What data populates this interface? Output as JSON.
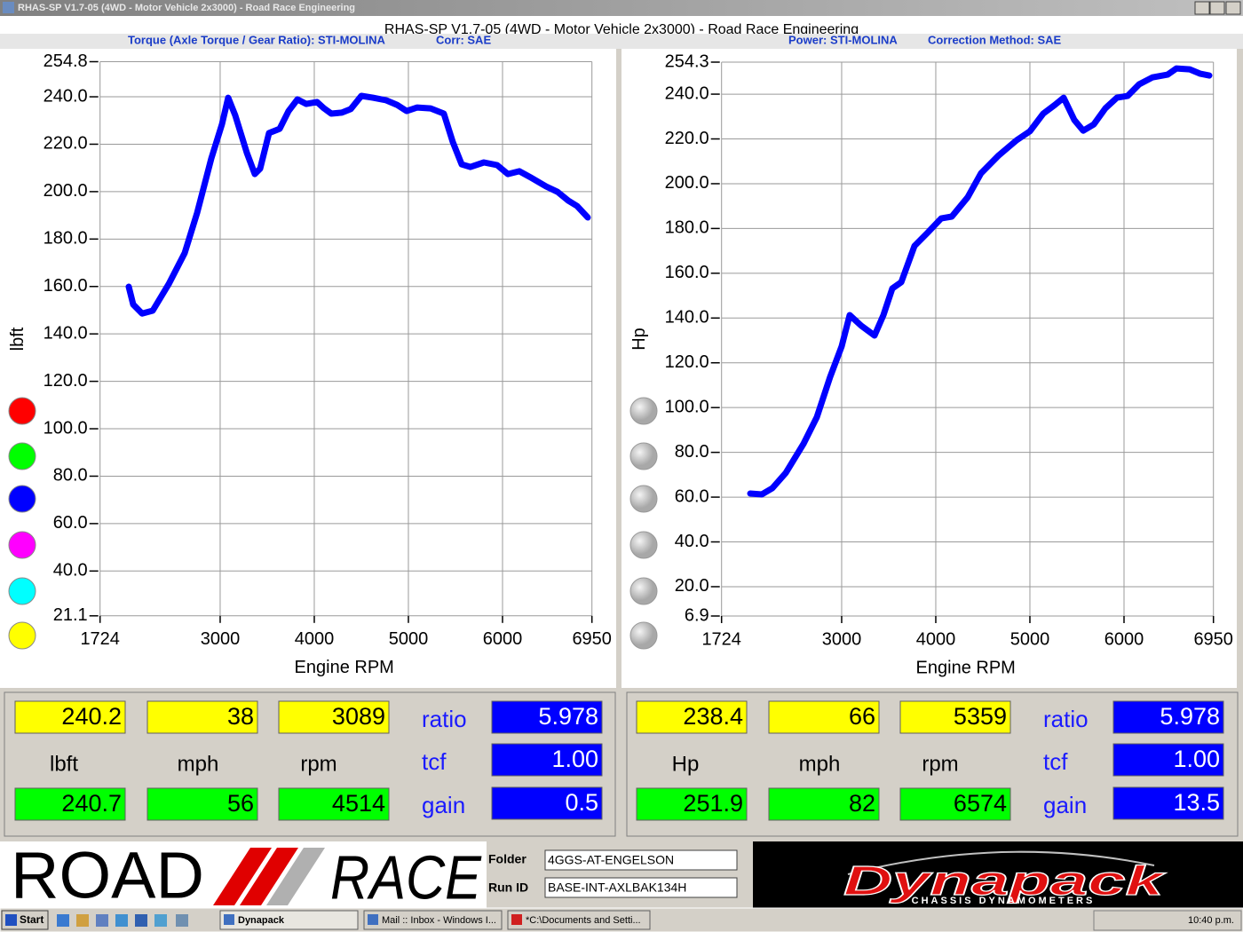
{
  "window": {
    "title": "RHAS-SP V1.7-05  (4WD - Motor Vehicle 2x3000) - Road Race Engineering"
  },
  "header": {
    "title": "RHAS-SP V1.7-05  (4WD - Motor Vehicle 2x3000) - Road Race Engineering",
    "left_info": [
      "Torque (Axle Torque / Gear Ratio): STI-MOLINA",
      "Corr: SAE"
    ],
    "right_info": [
      "Power: STI-MOLINA",
      "Correction Method: SAE"
    ]
  },
  "chart_data": [
    {
      "type": "line",
      "x_label": "Engine RPM",
      "y_label": "lbft",
      "color": "#0000ff",
      "grid": true,
      "xlim": [
        1724,
        6950
      ],
      "xticks": [
        1724,
        3000,
        4000,
        5000,
        6000,
        6950
      ],
      "ylim": [
        21.1,
        254.8
      ],
      "yticks": [
        254.8,
        {
          "value": 240,
          "label": "240.0"
        },
        {
          "value": 220,
          "label": "220.0"
        },
        {
          "value": 200,
          "label": "200.0"
        },
        {
          "value": 180,
          "label": "180.0"
        },
        {
          "value": 160,
          "label": "160.0"
        },
        {
          "value": 140,
          "label": "140.0"
        },
        {
          "value": 120,
          "label": "120.0"
        },
        {
          "value": 100,
          "label": "100.0"
        },
        {
          "value": 80,
          "label": "80.0"
        },
        {
          "value": 60,
          "label": "60.0"
        },
        {
          "value": 40,
          "label": "40.0"
        },
        21.1
      ],
      "x": [
        2029,
        2076,
        2170,
        2283,
        2453,
        2623,
        2755,
        2906,
        3019,
        3085,
        3161,
        3283,
        3368,
        3425,
        3519,
        3632,
        3727,
        3821,
        3915,
        4029,
        4104,
        4180,
        4293,
        4387,
        4500,
        4623,
        4764,
        4878,
        4981,
        5094,
        5236,
        5377,
        5472,
        5566,
        5660,
        5802,
        5943,
        6057,
        6179,
        6302,
        6462,
        6585,
        6698,
        6793,
        6906
      ],
      "values": [
        159.9,
        152.4,
        148.6,
        149.8,
        161,
        174.1,
        191,
        214,
        228.4,
        239.6,
        232.1,
        216.4,
        207.4,
        209.7,
        224.7,
        226.5,
        234,
        238.9,
        237,
        237.8,
        235.1,
        232.9,
        233.3,
        234.8,
        240.4,
        239.6,
        238.5,
        236.6,
        234,
        235.5,
        235.1,
        232.9,
        220.9,
        211.5,
        210.4,
        212.3,
        211.2,
        207.4,
        208.6,
        205.9,
        202.2,
        199.9,
        196.2,
        193.9,
        189.1
      ]
    },
    {
      "type": "line",
      "x_label": "Engine RPM",
      "y_label": "Hp",
      "color": "#0000ff",
      "grid": true,
      "xlim": [
        1724,
        6950
      ],
      "xticks": [
        1724,
        3000,
        4000,
        5000,
        6000,
        6950
      ],
      "ylim": [
        6.9,
        254.3
      ],
      "yticks": [
        254.3,
        {
          "value": 240,
          "label": "240.0"
        },
        {
          "value": 220,
          "label": "220.0"
        },
        {
          "value": 200,
          "label": "200.0"
        },
        {
          "value": 180,
          "label": "180.0"
        },
        {
          "value": 160,
          "label": "160.0"
        },
        {
          "value": 140,
          "label": "140.0"
        },
        {
          "value": 120,
          "label": "120.0"
        },
        {
          "value": 100,
          "label": "100.0"
        },
        {
          "value": 80,
          "label": "80.0"
        },
        {
          "value": 60,
          "label": "60.0"
        },
        {
          "value": 40,
          "label": "40.0"
        },
        {
          "value": 20,
          "label": "20.0"
        },
        6.9
      ],
      "x": [
        2029,
        2151,
        2264,
        2406,
        2595,
        2736,
        2877,
        3000,
        3085,
        3208,
        3349,
        3444,
        3538,
        3633,
        3774,
        3915,
        4057,
        4170,
        4340,
        4481,
        4670,
        4859,
        5000,
        5142,
        5265,
        5359,
        5472,
        5566,
        5679,
        5802,
        5925,
        6038,
        6160,
        6302,
        6462,
        6557,
        6698,
        6811,
        6906
      ],
      "values": [
        61.6,
        61.2,
        64,
        70.8,
        83.8,
        95.7,
        113.6,
        127.4,
        141.3,
        136.6,
        132.2,
        141.3,
        153.2,
        156,
        172.2,
        178.2,
        184.5,
        185.3,
        194,
        204.7,
        212.7,
        219.4,
        223.4,
        231.3,
        235.2,
        238.4,
        228.5,
        223.7,
        226.5,
        233.7,
        238.4,
        239.2,
        244.4,
        247.5,
        248.7,
        251.5,
        251.1,
        249.1,
        248.3
      ]
    }
  ],
  "readouts": [
    {
      "row1": [
        "240.2",
        "38",
        "3089"
      ],
      "units": [
        "lbft",
        "mph",
        "rpm"
      ],
      "row2": [
        "240.7",
        "56",
        "4514"
      ],
      "params": [
        {
          "label": "ratio",
          "value": "5.978"
        },
        {
          "label": "tcf",
          "value": "1.00"
        },
        {
          "label": "gain",
          "value": "0.5"
        }
      ]
    },
    {
      "row1": [
        "238.4",
        "66",
        "5359"
      ],
      "units": [
        "Hp",
        "mph",
        "rpm"
      ],
      "row2": [
        "251.9",
        "82",
        "6574"
      ],
      "params": [
        {
          "label": "ratio",
          "value": "5.978"
        },
        {
          "label": "tcf",
          "value": "1.00"
        },
        {
          "label": "gain",
          "value": "13.5"
        }
      ]
    }
  ],
  "footer": {
    "logo": [
      "ROAD",
      "RACE"
    ],
    "fields": [
      {
        "label": "Folder",
        "value": "4GGS-AT-ENGELSON"
      },
      {
        "label": "Run ID",
        "value": "BASE-INT-AXLBAK134H"
      }
    ],
    "brand": "Dynapack",
    "brand_sub": "CHASSIS DYNAMOMETERS"
  },
  "taskbar": {
    "start": "Start",
    "items": [
      "Dynapack",
      "Mail :: Inbox - Windows I...",
      "*C:\\Documents and Setti..."
    ],
    "clock": "10:40 p.m."
  }
}
